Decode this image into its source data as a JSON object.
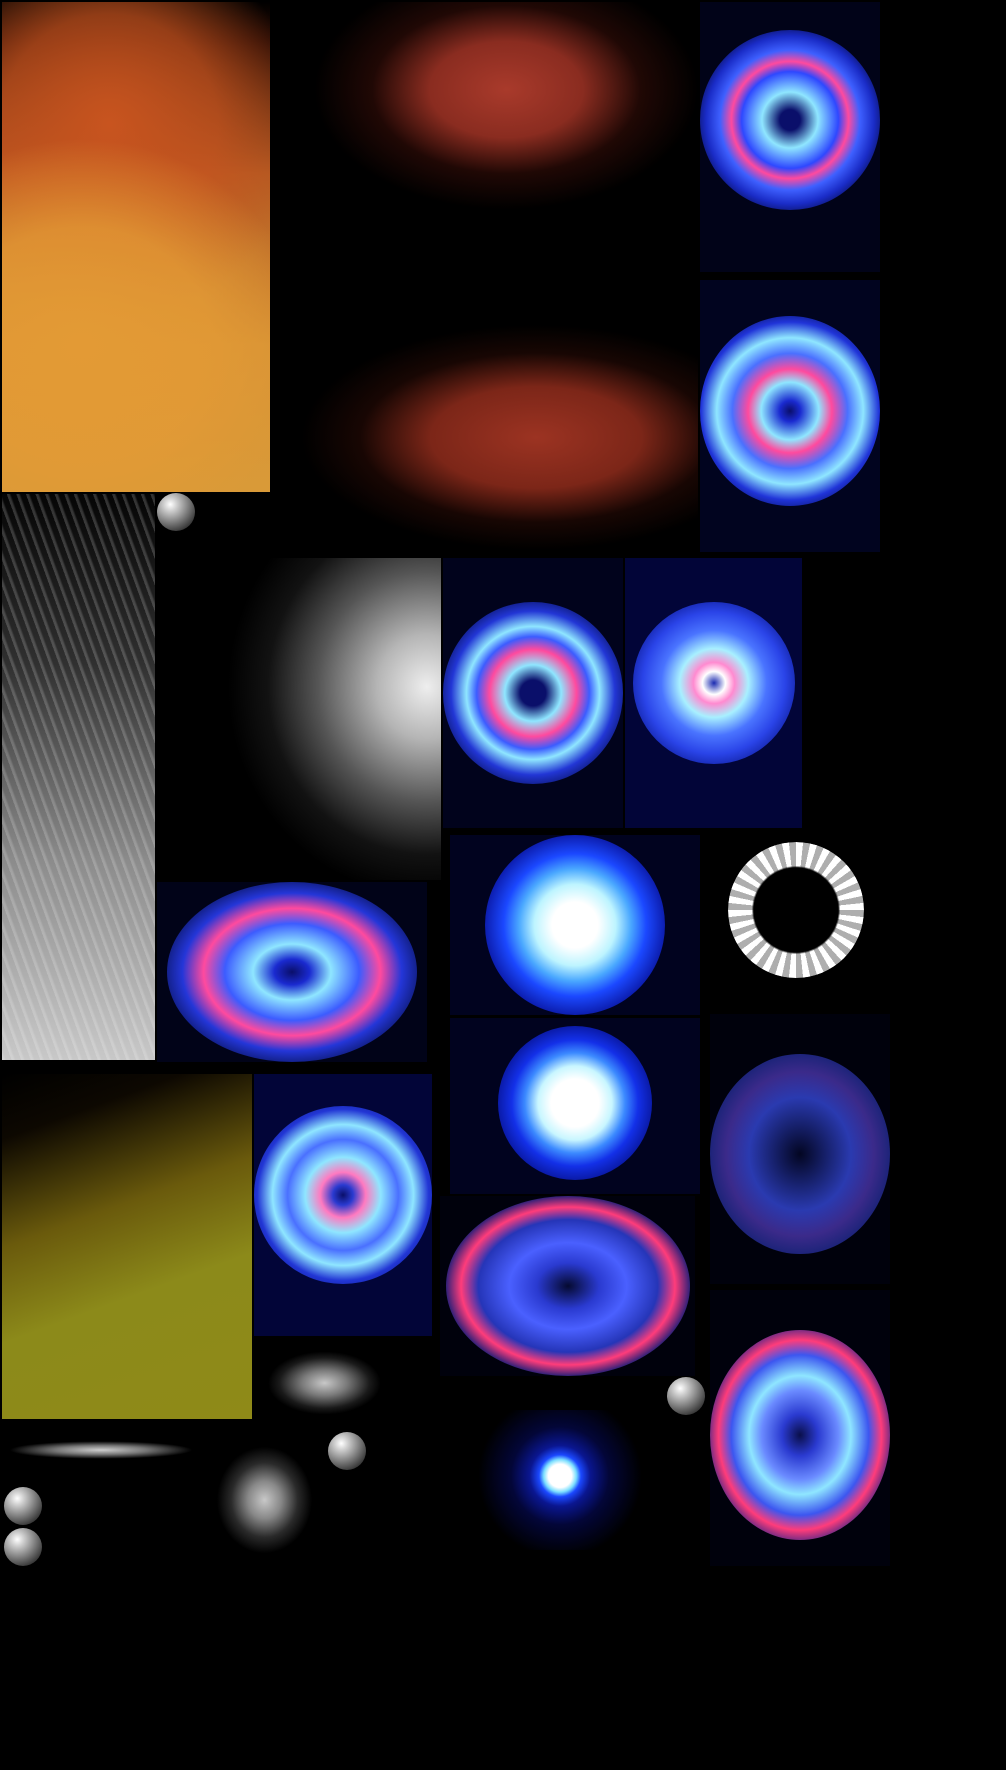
{
  "sheet": {
    "background": "#000000",
    "colors": {
      "orange": "#d8902e",
      "rust": "#a83a2a",
      "blue": "#1f3cff",
      "cyan": "#8fe6ff",
      "magenta": "#ff3c9a",
      "olive": "#8f8a18",
      "white": "#ffffff"
    },
    "tiles": [
      {
        "id": "orange-gradient",
        "icon": "orange-smoke-gradient"
      },
      {
        "id": "rust-smoke-top",
        "icon": "rust-smoke"
      },
      {
        "id": "rust-smoke-bottom",
        "icon": "rust-smoke"
      },
      {
        "id": "blue-burst-1",
        "icon": "blue-plasma-burst"
      },
      {
        "id": "blue-burst-2",
        "icon": "blue-plasma-burst"
      },
      {
        "id": "grey-streaks",
        "icon": "light-streaks"
      },
      {
        "id": "grey-glow",
        "icon": "soft-white-glow"
      },
      {
        "id": "blue-burst-3",
        "icon": "blue-plasma-burst"
      },
      {
        "id": "blue-orb-1",
        "icon": "blue-energy-orb"
      },
      {
        "id": "blue-burst-4",
        "icon": "blue-plasma-burst"
      },
      {
        "id": "blue-orb-2",
        "icon": "blue-energy-orb"
      },
      {
        "id": "white-ring",
        "icon": "white-shard-ring"
      },
      {
        "id": "dark-burst-1",
        "icon": "dark-blue-burst"
      },
      {
        "id": "blue-orb-3",
        "icon": "blue-energy-orb"
      },
      {
        "id": "olive-gradient",
        "icon": "olive-smoke-gradient"
      },
      {
        "id": "blue-burst-5",
        "icon": "blue-plasma-burst"
      },
      {
        "id": "dark-burst-2",
        "icon": "dark-blue-burst"
      },
      {
        "id": "blue-burst-6",
        "icon": "blue-plasma-burst"
      },
      {
        "id": "small-blob",
        "icon": "grey-blob"
      },
      {
        "id": "grey-bar",
        "icon": "grey-line"
      },
      {
        "id": "grey-puff",
        "icon": "grey-puff"
      },
      {
        "id": "small-blue-dot",
        "icon": "blue-dot"
      }
    ],
    "spheres": 5
  }
}
